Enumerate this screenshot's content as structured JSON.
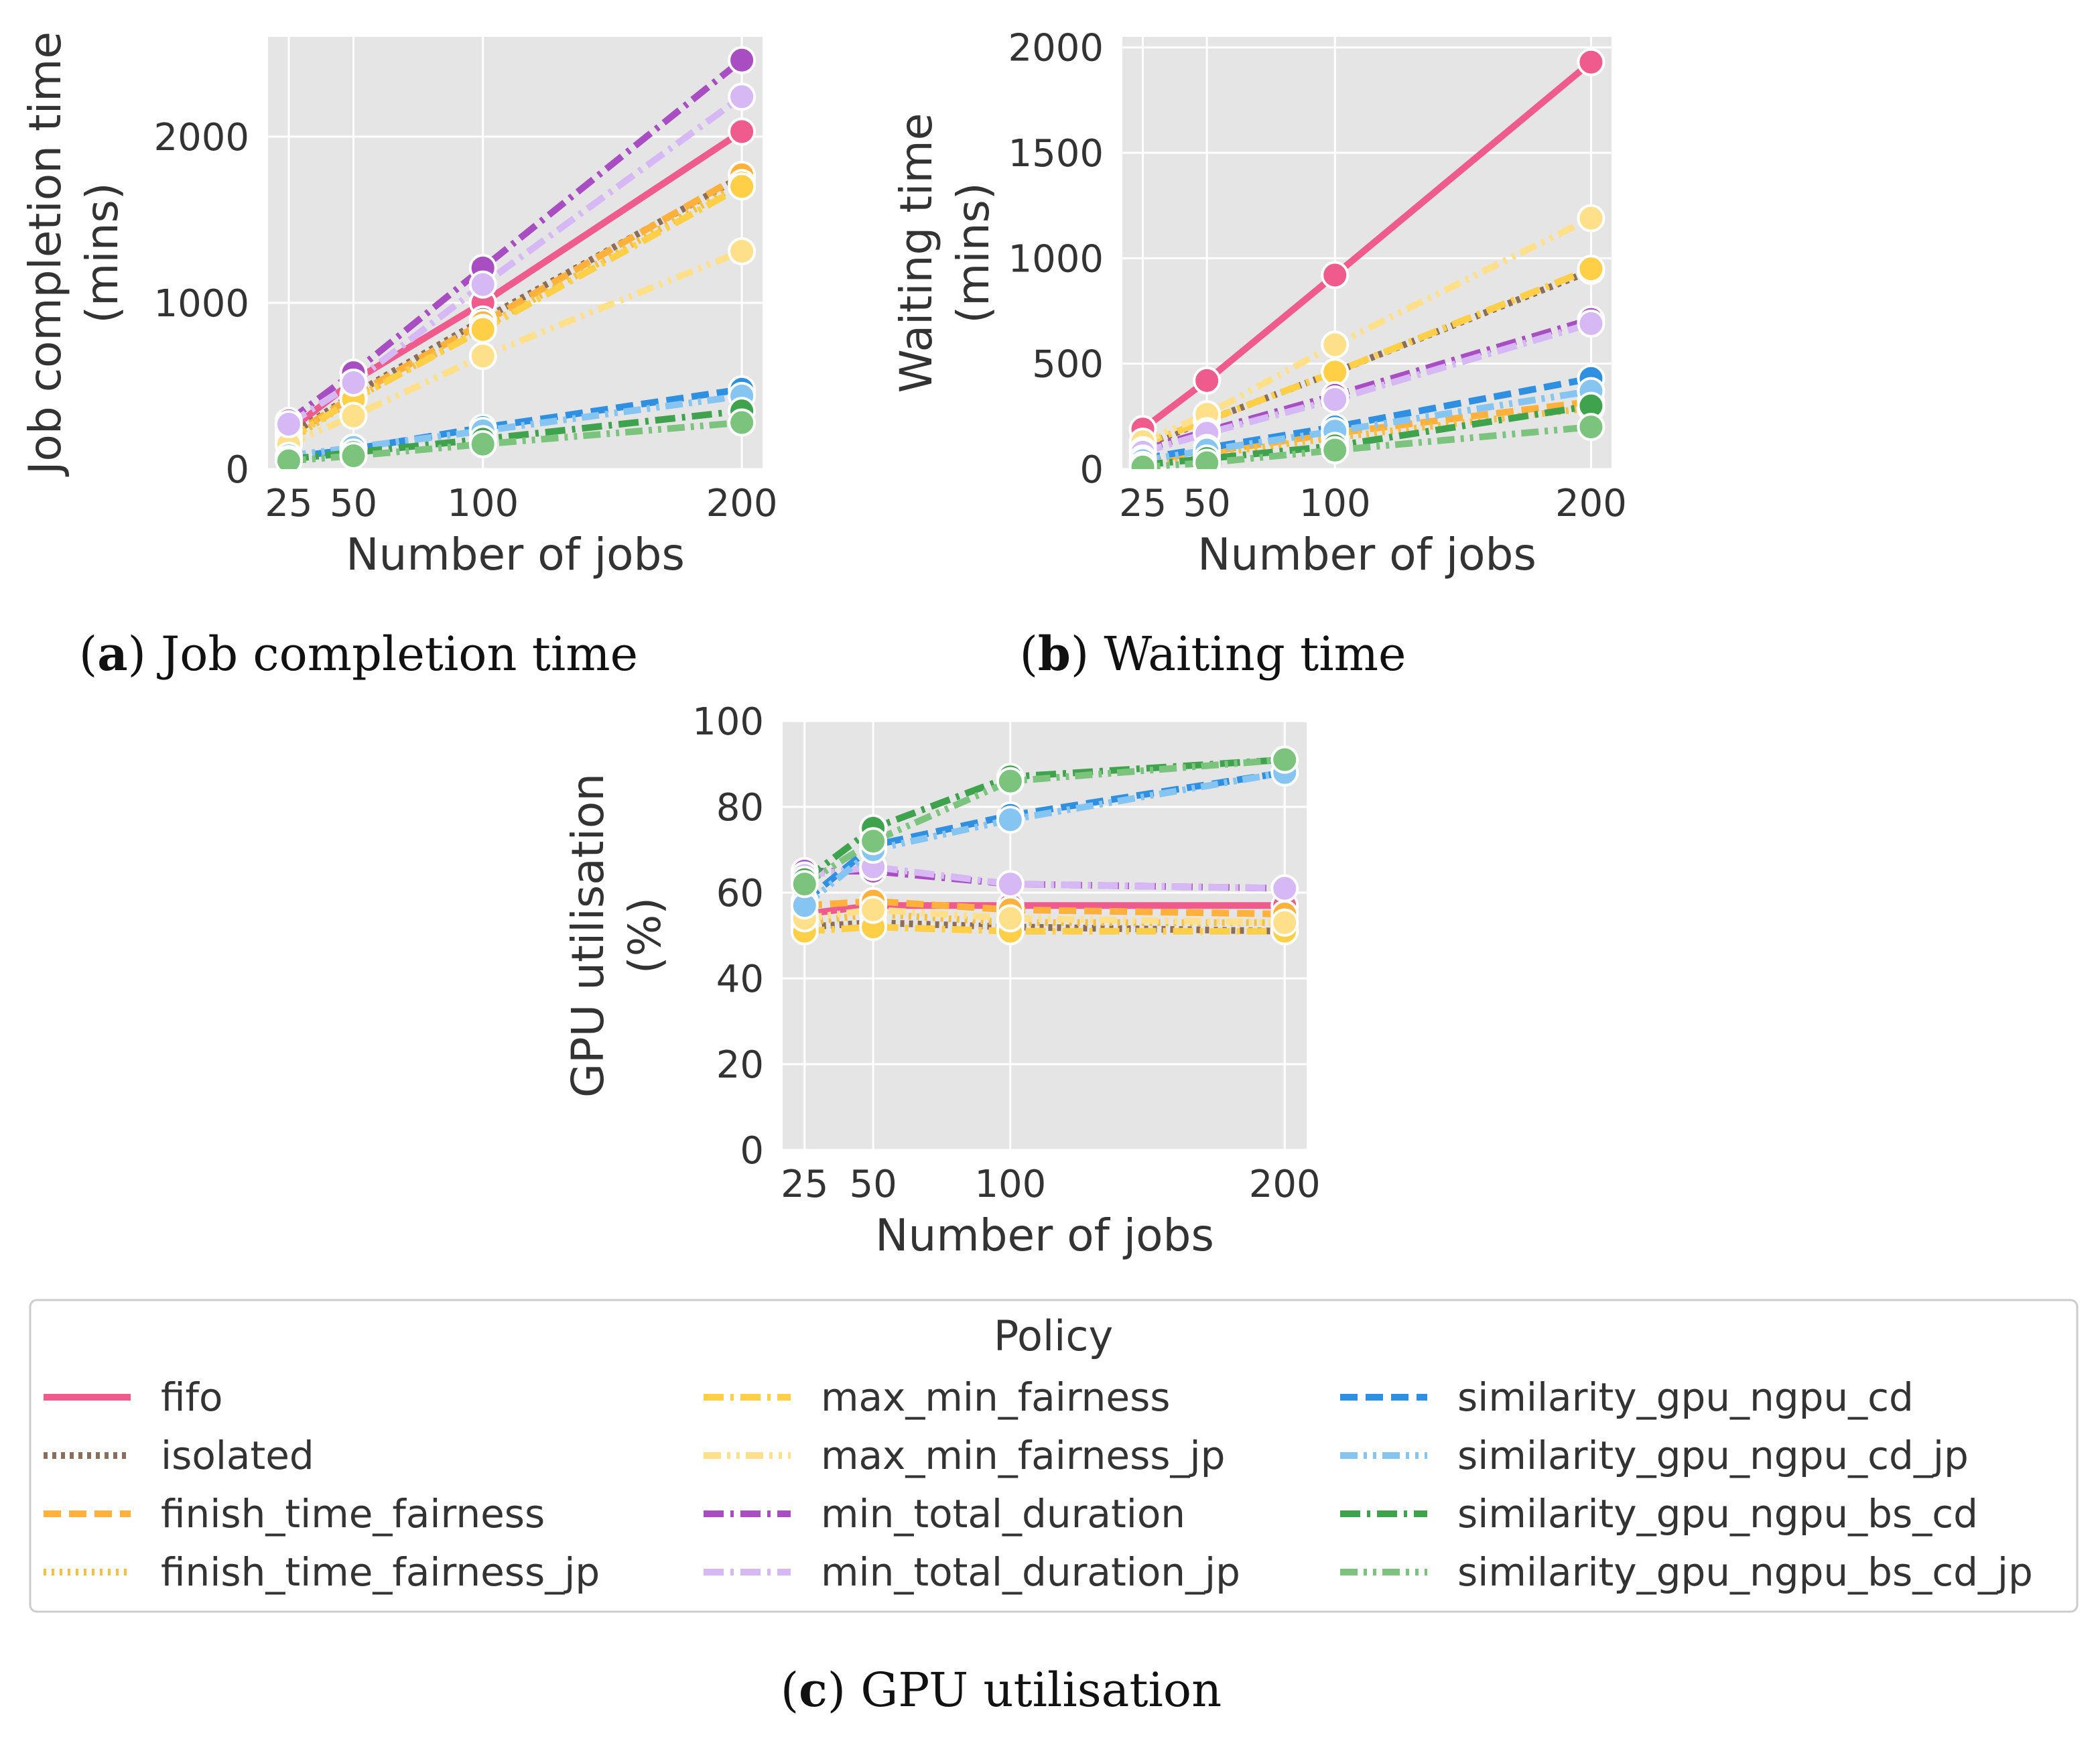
{
  "chart_data": [
    {
      "type": "line",
      "caption_letter": "a",
      "caption_text": "Job completion time",
      "xlabel": "Number of jobs",
      "ylabel": [
        "Job completion time",
        "(mins)"
      ],
      "x": [
        25,
        50,
        100,
        200
      ],
      "xticks": [
        "25",
        "50",
        "100",
        "200"
      ],
      "yticks": [
        "0",
        "1000",
        "2000"
      ],
      "xlim": [
        17,
        208
      ],
      "ylim": [
        0,
        2600
      ],
      "series": [
        {
          "name": "fifo",
          "values": [
            230,
            530,
            1000,
            2030
          ]
        },
        {
          "name": "isolated",
          "values": [
            200,
            450,
            900,
            1760
          ]
        },
        {
          "name": "finish_time_fairness",
          "values": [
            190,
            440,
            880,
            1770
          ]
        },
        {
          "name": "finish_time_fairness_jp",
          "values": [
            170,
            420,
            850,
            1720
          ]
        },
        {
          "name": "max_min_fairness",
          "values": [
            180,
            420,
            840,
            1700
          ]
        },
        {
          "name": "max_min_fairness_jp",
          "values": [
            150,
            320,
            680,
            1310
          ]
        },
        {
          "name": "min_total_duration",
          "values": [
            290,
            580,
            1210,
            2460
          ]
        },
        {
          "name": "min_total_duration_jp",
          "values": [
            270,
            520,
            1110,
            2240
          ]
        },
        {
          "name": "similarity_gpu_ngpu_cd",
          "values": [
            70,
            120,
            250,
            480
          ]
        },
        {
          "name": "similarity_gpu_ngpu_cd_jp",
          "values": [
            80,
            130,
            230,
            440
          ]
        },
        {
          "name": "similarity_gpu_ngpu_bs_cd",
          "values": [
            60,
            100,
            180,
            350
          ]
        },
        {
          "name": "similarity_gpu_ngpu_bs_cd_jp",
          "values": [
            50,
            80,
            150,
            280
          ]
        }
      ]
    },
    {
      "type": "line",
      "caption_letter": "b",
      "caption_text": "Waiting time",
      "xlabel": "Number of jobs",
      "ylabel": [
        "Waiting time",
        "(mins)"
      ],
      "x": [
        25,
        50,
        100,
        200
      ],
      "xticks": [
        "25",
        "50",
        "100",
        "200"
      ],
      "yticks": [
        "0",
        "500",
        "1000",
        "1500",
        "2000"
      ],
      "xlim": [
        17,
        208
      ],
      "ylim": [
        0,
        2050
      ],
      "series": [
        {
          "name": "fifo",
          "values": [
            190,
            420,
            920,
            1930
          ]
        },
        {
          "name": "isolated",
          "values": [
            110,
            230,
            460,
            940
          ]
        },
        {
          "name": "finish_time_fairness",
          "values": [
            40,
            80,
            170,
            320
          ]
        },
        {
          "name": "finish_time_fairness_jp",
          "values": [
            30,
            70,
            150,
            290
          ]
        },
        {
          "name": "max_min_fairness",
          "values": [
            120,
            230,
            460,
            950
          ]
        },
        {
          "name": "max_min_fairness_jp",
          "values": [
            130,
            260,
            590,
            1190
          ]
        },
        {
          "name": "min_total_duration",
          "values": [
            90,
            180,
            350,
            710
          ]
        },
        {
          "name": "min_total_duration_jp",
          "values": [
            80,
            170,
            330,
            690
          ]
        },
        {
          "name": "similarity_gpu_ngpu_cd",
          "values": [
            50,
            100,
            200,
            430
          ]
        },
        {
          "name": "similarity_gpu_ngpu_cd_jp",
          "values": [
            40,
            90,
            180,
            370
          ]
        },
        {
          "name": "similarity_gpu_ngpu_bs_cd",
          "values": [
            20,
            50,
            110,
            300
          ]
        },
        {
          "name": "similarity_gpu_ngpu_bs_cd_jp",
          "values": [
            10,
            30,
            90,
            200
          ]
        }
      ]
    },
    {
      "type": "line",
      "caption_letter": "c",
      "caption_text": "GPU utilisation",
      "xlabel": "Number of jobs",
      "ylabel": [
        "GPU utilisation",
        "(%)"
      ],
      "x": [
        25,
        50,
        100,
        200
      ],
      "xticks": [
        "25",
        "50",
        "100",
        "200"
      ],
      "yticks": [
        "0",
        "20",
        "40",
        "60",
        "80",
        "100"
      ],
      "xlim": [
        17,
        208
      ],
      "ylim": [
        0,
        100
      ],
      "series": [
        {
          "name": "fifo",
          "values": [
            55,
            57,
            57,
            57
          ]
        },
        {
          "name": "isolated",
          "values": [
            52,
            53,
            52,
            51
          ]
        },
        {
          "name": "finish_time_fairness",
          "values": [
            57,
            58,
            56,
            55
          ]
        },
        {
          "name": "finish_time_fairness_jp",
          "values": [
            53,
            55,
            53,
            53
          ]
        },
        {
          "name": "max_min_fairness",
          "values": [
            51,
            52,
            51,
            51
          ]
        },
        {
          "name": "max_min_fairness_jp",
          "values": [
            54,
            56,
            54,
            53
          ]
        },
        {
          "name": "min_total_duration",
          "values": [
            65,
            65,
            62,
            61
          ]
        },
        {
          "name": "min_total_duration_jp",
          "values": [
            64,
            66,
            62,
            61
          ]
        },
        {
          "name": "similarity_gpu_ngpu_cd",
          "values": [
            58,
            71,
            78,
            88
          ]
        },
        {
          "name": "similarity_gpu_ngpu_cd_jp",
          "values": [
            57,
            70,
            77,
            88
          ]
        },
        {
          "name": "similarity_gpu_ngpu_bs_cd",
          "values": [
            63,
            75,
            87,
            91
          ]
        },
        {
          "name": "similarity_gpu_ngpu_bs_cd_jp",
          "values": [
            62,
            72,
            86,
            91
          ]
        }
      ]
    }
  ],
  "legend": {
    "title": "Policy",
    "entries": [
      {
        "name": "fifo",
        "color": "#ee5b8c",
        "dash": "solid"
      },
      {
        "name": "isolated",
        "color": "#8c6d5a",
        "dash": "dotted-dense"
      },
      {
        "name": "finish_time_fairness",
        "color": "#ffb13b",
        "dash": "dashed"
      },
      {
        "name": "finish_time_fairness_jp",
        "color": "#f5c042",
        "dash": "dotted"
      },
      {
        "name": "max_min_fairness",
        "color": "#fecf47",
        "dash": "dashdot"
      },
      {
        "name": "max_min_fairness_jp",
        "color": "#ffe08a",
        "dash": "dashdotdot"
      },
      {
        "name": "min_total_duration",
        "color": "#a84ec2",
        "dash": "dashdot"
      },
      {
        "name": "min_total_duration_jp",
        "color": "#d6b8f5",
        "dash": "dashdot"
      },
      {
        "name": "similarity_gpu_ngpu_cd",
        "color": "#2f8fe0",
        "dash": "dashed"
      },
      {
        "name": "similarity_gpu_ngpu_cd_jp",
        "color": "#86c4f2",
        "dash": "dashdotdot"
      },
      {
        "name": "similarity_gpu_ngpu_bs_cd",
        "color": "#3fa34d",
        "dash": "dashdot"
      },
      {
        "name": "similarity_gpu_ngpu_bs_cd_jp",
        "color": "#7cc47e",
        "dash": "dashdotdot"
      }
    ]
  }
}
